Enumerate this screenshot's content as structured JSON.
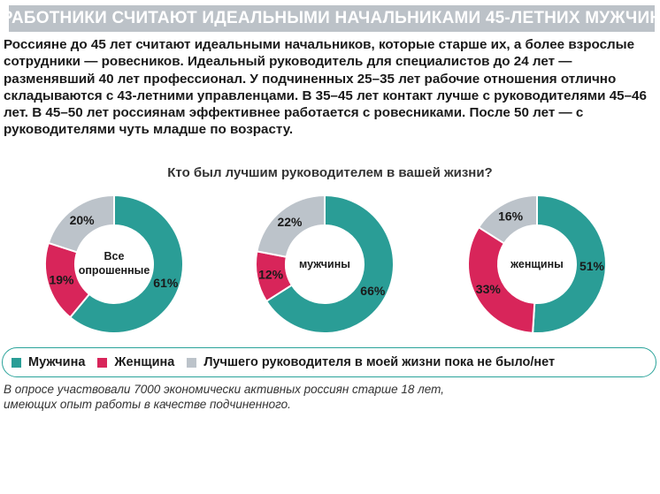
{
  "header": {
    "title": "РАБОТНИКИ СЧИТАЮТ ИДЕАЛЬНЫМИ НАЧАЛЬНИКАМИ 45-ЛЕТНИХ МУЖЧИН"
  },
  "intro": {
    "text": "Россияне до 45 лет считают идеальными начальников, которые старше их, а более взрослые сотрудники — ровесников. Идеальный руководитель для специалистов до 24 лет — разменявший 40 лет профессионал. У подчиненных 25–35 лет рабочие отношения отлично складываются с 43-летними управленцами. В 35–45 лет контакт лучше с руководителями 45–46 лет. В 45–50 лет россиянам эффективнее работается с ровесниками. После 50 лет — с руководителями чуть младше по возрасту."
  },
  "question": "Кто был лучшим руководителем в вашей жизни?",
  "colors": {
    "male": "#2a9d96",
    "female": "#d8255a",
    "none": "#bcc3ca",
    "title_bg": "#bcc2c8",
    "legend_border": "#2aa39a"
  },
  "chart_data": [
    {
      "type": "pie",
      "title": "Все опрошенные",
      "categories": [
        "Мужчина",
        "Женщина",
        "Лучшего руководителя в моей жизни пока не было/нет"
      ],
      "values": [
        61,
        19,
        20
      ],
      "labels": [
        "61%",
        "19%",
        "20%"
      ]
    },
    {
      "type": "pie",
      "title": "мужчины",
      "categories": [
        "Мужчина",
        "Женщина",
        "Лучшего руководителя в моей жизни пока не было/нет"
      ],
      "values": [
        66,
        12,
        22
      ],
      "labels": [
        "66%",
        "12%",
        "22%"
      ]
    },
    {
      "type": "pie",
      "title": "женщины",
      "categories": [
        "Мужчина",
        "Женщина",
        "Лучшего руководителя в моей жизни пока не было/нет"
      ],
      "values": [
        51,
        33,
        16
      ],
      "labels": [
        "51%",
        "33%",
        "16%"
      ]
    }
  ],
  "legend": {
    "male": "Мужчина",
    "female": "Женщина",
    "none": "Лучшего руководителя в моей жизни пока не было/нет"
  },
  "footnote": {
    "line1": "В опросе участвовали 7000 экономически активных россиян старше 18 лет,",
    "line2": "имеющих опыт работы в качестве подчиненного."
  }
}
